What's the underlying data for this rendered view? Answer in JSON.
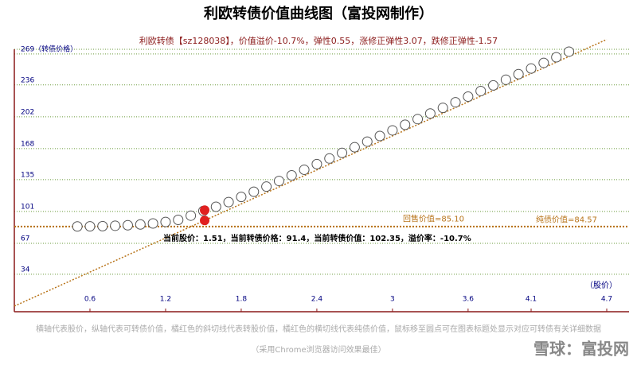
{
  "chart_data": {
    "type": "scatter",
    "title": "利欧转债价值曲线图（富投网制作）",
    "subtitle": "利欧转债【sz128038】，价值溢价-10.7%，弹性0.55，涨修正弹性3.07，跌修正弹性-1.57",
    "x_label": "（股价）",
    "xlim": [
      0,
      4.7
    ],
    "xticks": [
      0.6,
      1.2,
      1.8,
      2.4,
      3.0,
      3.6,
      4.1,
      4.7
    ],
    "ylim": [
      -6,
      274
    ],
    "yticks": [
      34,
      67,
      101,
      135,
      168,
      202,
      236,
      {
        "value": 269,
        "label": "269（转债价格）"
      }
    ],
    "grid": true,
    "x": [
      0.5,
      0.6,
      0.7,
      0.8,
      0.9,
      1.0,
      1.1,
      1.2,
      1.3,
      1.4,
      1.5,
      1.6,
      1.7,
      1.8,
      1.9,
      2.0,
      2.1,
      2.2,
      2.3,
      2.4,
      2.5,
      2.6,
      2.7,
      2.8,
      2.9,
      3.0,
      3.1,
      3.2,
      3.3,
      3.4,
      3.5,
      3.6,
      3.7,
      3.8,
      3.9,
      4.0,
      4.1,
      4.2,
      4.3,
      4.4
    ],
    "series": [
      {
        "name": "转债价值",
        "color": "#555555",
        "values": [
          85.0,
          85.1,
          85.3,
          85.7,
          86.3,
          87.1,
          88.2,
          89.8,
          92.0,
          96.5,
          101.5,
          106,
          111,
          116.5,
          122,
          127.5,
          133.5,
          139.5,
          145.5,
          151.5,
          157.5,
          163.5,
          169.5,
          175.5,
          181.5,
          187.5,
          193.5,
          199.5,
          205.5,
          211.5,
          217.5,
          223.5,
          229.5,
          235.5,
          241.5,
          247.5,
          253.5,
          259.5,
          265.5,
          271.5
        ]
      }
    ],
    "conversion_line": {
      "color": "#b8741a",
      "x": [
        0,
        4.7
      ],
      "values": [
        0,
        284.5
      ]
    },
    "reference_lines": [
      {
        "label": "回售价值=85.10",
        "value": 85.1,
        "color": "#b8741a"
      },
      {
        "label": "纯债价值=84.57",
        "value": 84.57,
        "color": "#b8741a"
      }
    ],
    "current": {
      "x": 1.51,
      "price": 91.4,
      "value": 102.35,
      "color": "#e02020",
      "annotation": "当前股价：1.51，当前转债价格：91.4，当前转债价值：102.35，溢价率：-10.7%"
    },
    "footer": "横轴代表股价，纵轴代表可转债价值，橘红色的斜切线代表转股价值，橘红色的横切线代表纯债价值，鼠标移至圆点可在图表标题处显示对应可转债有关详细数据",
    "footer_note": "（采用Chrome浏览器访问效果最佳）",
    "watermark": "雪球：富投网"
  }
}
